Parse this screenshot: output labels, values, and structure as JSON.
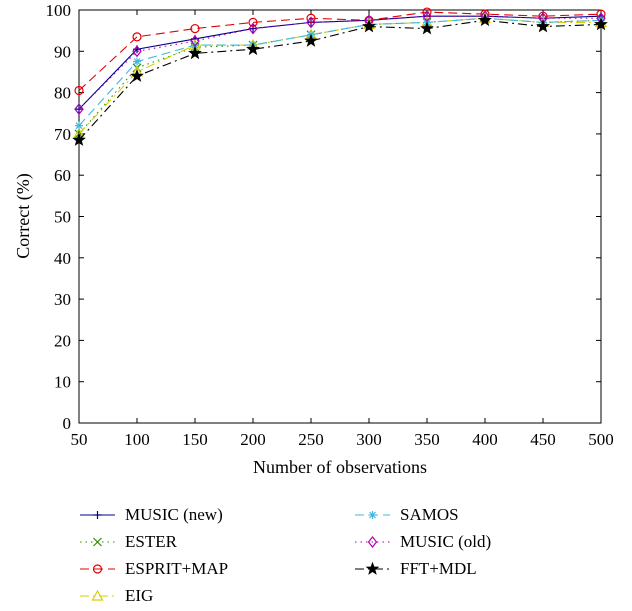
{
  "chart_data": {
    "type": "line",
    "title": "",
    "xlabel": "Number of observations",
    "ylabel": "Correct (%)",
    "x": [
      50,
      100,
      150,
      200,
      250,
      300,
      350,
      400,
      450,
      500
    ],
    "xlim": [
      50,
      500
    ],
    "ylim": [
      0,
      100
    ],
    "xticks": [
      "50",
      "100",
      "150",
      "200",
      "250",
      "300",
      "350",
      "400",
      "450",
      "500"
    ],
    "yticks": [
      "0",
      "10",
      "20",
      "30",
      "40",
      "50",
      "60",
      "70",
      "80",
      "90",
      "100"
    ],
    "grid": false,
    "legend_position": "bottom",
    "series": [
      {
        "name": "MUSIC (new)",
        "color": "#00008B",
        "dash": "solid",
        "marker": "plus",
        "values": [
          76,
          90.5,
          93,
          95.5,
          97,
          97.5,
          98.5,
          98.5,
          98,
          98.5
        ]
      },
      {
        "name": "ESTER",
        "color": "#2E8B00",
        "dash": "dotted",
        "marker": "x",
        "values": [
          70,
          86,
          91,
          91.5,
          94,
          96.5,
          97,
          98,
          97,
          97.5
        ]
      },
      {
        "name": "ESPRIT+MAP",
        "color": "#E00000",
        "dash": "dashed",
        "marker": "circle",
        "values": [
          80.5,
          93.5,
          95.5,
          97,
          98,
          97.5,
          99.5,
          99,
          98.5,
          99
        ]
      },
      {
        "name": "EIG",
        "color": "#D8D000",
        "dash": "dashdot",
        "marker": "triangle",
        "values": [
          70,
          85,
          91.5,
          91.5,
          94,
          96.5,
          97,
          98,
          97,
          97
        ]
      },
      {
        "name": "SAMOS",
        "color": "#40B8E0",
        "dash": "dashed",
        "marker": "asterisk",
        "values": [
          72,
          87.5,
          91.5,
          91.5,
          94,
          96.5,
          97,
          98,
          97,
          97.5
        ]
      },
      {
        "name": "MUSIC (old)",
        "color": "#B000B0",
        "dash": "dotted",
        "marker": "diamond",
        "values": [
          76,
          90,
          92.5,
          95.5,
          97,
          97.5,
          98.5,
          98.5,
          98,
          98
        ]
      },
      {
        "name": "FFT+MDL",
        "color": "#000000",
        "dash": "dashdot",
        "marker": "star",
        "values": [
          68.5,
          84,
          89.5,
          90.5,
          92.5,
          96,
          95.5,
          97.5,
          96,
          96.5
        ]
      }
    ]
  }
}
